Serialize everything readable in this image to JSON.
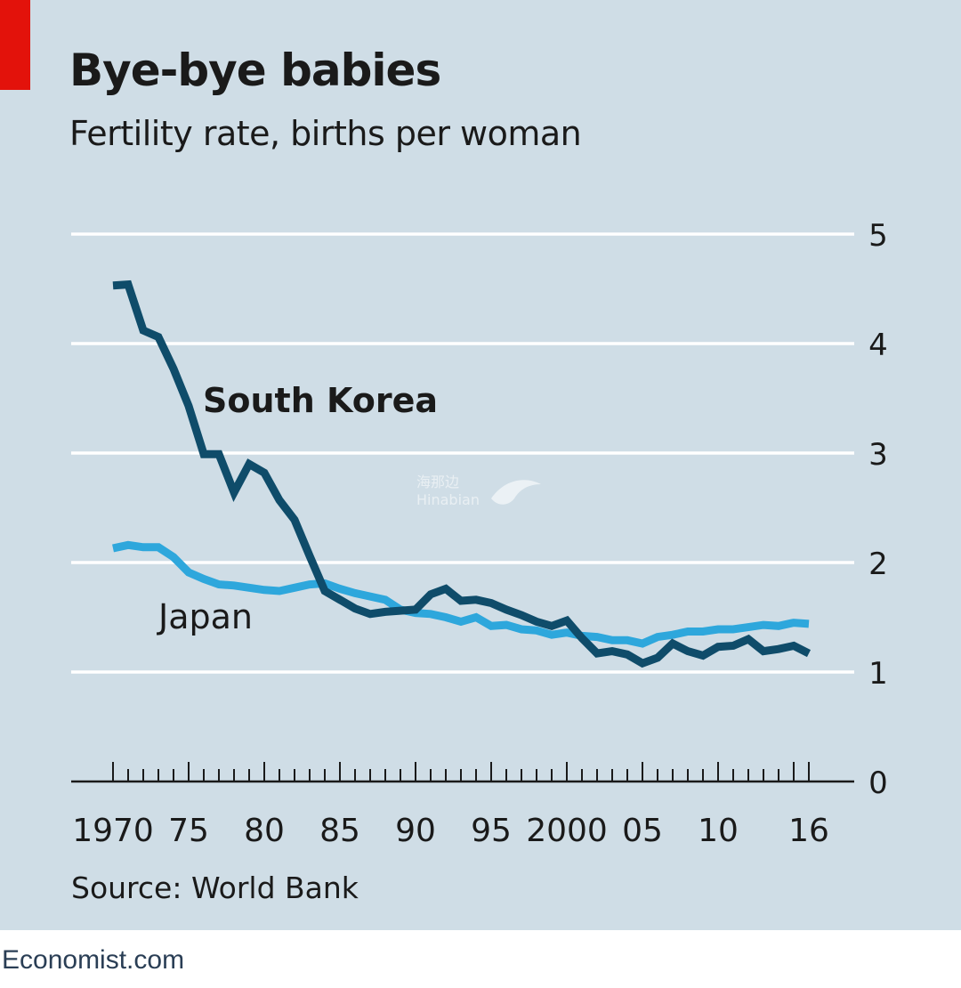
{
  "header": {
    "title": "Bye-bye babies",
    "subtitle": "Fertility rate, births per woman"
  },
  "source": "Source: World Bank",
  "footer": "Economist.com",
  "watermark": {
    "cn": "海那边",
    "en": "Hinabian"
  },
  "colors": {
    "background": "#cfdde6",
    "accent_red": "#e3120b",
    "south_korea": "#0f4c6a",
    "japan": "#2ea7dc",
    "grid": "#ffffff",
    "text": "#1a1a1a"
  },
  "chart_data": {
    "type": "line",
    "title": "Bye-bye babies",
    "subtitle": "Fertility rate, births per woman",
    "x_tick_labels": [
      {
        "x": 1970,
        "label": "1970"
      },
      {
        "x": 1975,
        "label": "75"
      },
      {
        "x": 1980,
        "label": "80"
      },
      {
        "x": 1985,
        "label": "85"
      },
      {
        "x": 1990,
        "label": "90"
      },
      {
        "x": 1995,
        "label": "95"
      },
      {
        "x": 2000,
        "label": "2000"
      },
      {
        "x": 2005,
        "label": "05"
      },
      {
        "x": 2010,
        "label": "10"
      },
      {
        "x": 2016,
        "label": "16"
      }
    ],
    "y_ticks": [
      0,
      1,
      2,
      3,
      4,
      5
    ],
    "xlim": [
      1970,
      2016
    ],
    "ylim": [
      0,
      5
    ],
    "y_axis_side": "right",
    "grid": true,
    "x": [
      1970,
      1971,
      1972,
      1973,
      1974,
      1975,
      1976,
      1977,
      1978,
      1979,
      1980,
      1981,
      1982,
      1983,
      1984,
      1985,
      1986,
      1987,
      1988,
      1989,
      1990,
      1991,
      1992,
      1993,
      1994,
      1995,
      1996,
      1997,
      1998,
      1999,
      2000,
      2001,
      2002,
      2003,
      2004,
      2005,
      2006,
      2007,
      2008,
      2009,
      2010,
      2011,
      2012,
      2013,
      2014,
      2015,
      2016
    ],
    "series": [
      {
        "name": "South Korea",
        "color": "#0f4c6a",
        "values": [
          4.53,
          4.54,
          4.12,
          4.06,
          3.77,
          3.43,
          2.99,
          2.99,
          2.64,
          2.9,
          2.82,
          2.57,
          2.39,
          2.06,
          1.74,
          1.66,
          1.58,
          1.53,
          1.55,
          1.56,
          1.57,
          1.71,
          1.76,
          1.65,
          1.66,
          1.63,
          1.57,
          1.52,
          1.46,
          1.42,
          1.47,
          1.31,
          1.17,
          1.19,
          1.16,
          1.08,
          1.13,
          1.26,
          1.19,
          1.15,
          1.23,
          1.24,
          1.3,
          1.19,
          1.21,
          1.24,
          1.17
        ]
      },
      {
        "name": "Japan",
        "color": "#2ea7dc",
        "values": [
          2.13,
          2.16,
          2.14,
          2.14,
          2.05,
          1.91,
          1.85,
          1.8,
          1.79,
          1.77,
          1.75,
          1.74,
          1.77,
          1.8,
          1.81,
          1.76,
          1.72,
          1.69,
          1.66,
          1.57,
          1.54,
          1.53,
          1.5,
          1.46,
          1.5,
          1.42,
          1.43,
          1.39,
          1.38,
          1.34,
          1.36,
          1.33,
          1.32,
          1.29,
          1.29,
          1.26,
          1.32,
          1.34,
          1.37,
          1.37,
          1.39,
          1.39,
          1.41,
          1.43,
          1.42,
          1.45,
          1.44
        ]
      }
    ],
    "annotations": [
      {
        "text": "South Korea",
        "series": "South Korea"
      },
      {
        "text": "Japan",
        "series": "Japan"
      }
    ],
    "source": "Source: World Bank"
  }
}
